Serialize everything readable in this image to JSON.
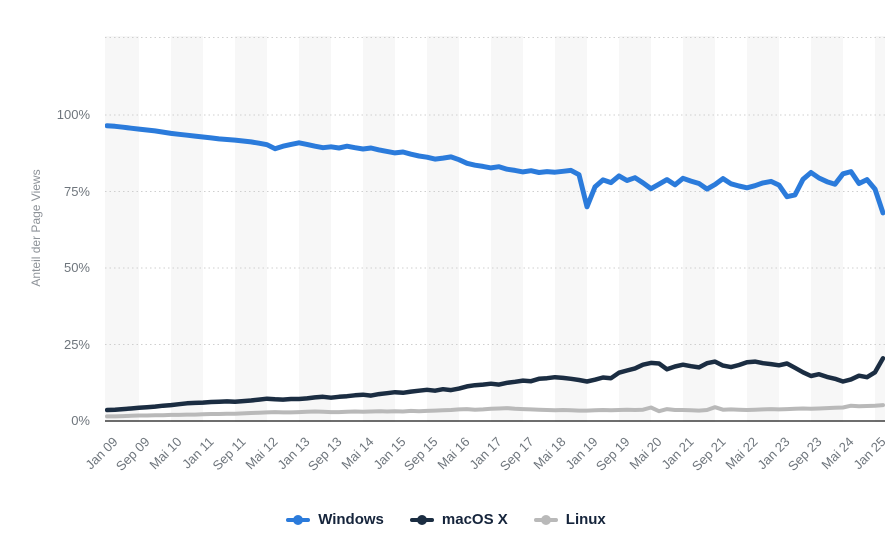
{
  "chart_data": {
    "type": "line",
    "title": "",
    "xlabel": "",
    "ylabel": "Anteil der Page Views",
    "ylim": [
      0,
      126
    ],
    "grid": "dotted horizontal lines at 0/25/50/75/100% plus top border",
    "background": "alternating vertical stripes, one stripe per 8-month tick interval",
    "legend_position": "bottom center",
    "x_unit": "monthly data, Jan 2009 - early 2025, tick every 8 months",
    "y_tick_labels": [
      "0%",
      "25%",
      "50%",
      "75%",
      "100%"
    ],
    "x_tick_labels": [
      "Jan 09",
      "Sep 09",
      "Mai 10",
      "Jan 11",
      "Sep 11",
      "Mai 12",
      "Jan 13",
      "Sep 13",
      "Mai 14",
      "Jan 15",
      "Sep 15",
      "Mai 16",
      "Jan 17",
      "Sep 17",
      "Mai 18",
      "Jan 19",
      "Sep 19",
      "Mai 20",
      "Jan 21",
      "Sep 21",
      "Mai 22",
      "Jan 23",
      "Sep 23",
      "Mai 24",
      "Jan 25"
    ],
    "series": [
      {
        "name": "Windows",
        "color": "#2b7bdb",
        "values": [
          96.5,
          96.3,
          96.0,
          95.7,
          95.4,
          95.1,
          94.8,
          94.4,
          94.0,
          93.7,
          93.4,
          93.1,
          92.8,
          92.5,
          92.2,
          92.0,
          91.8,
          91.5,
          91.2,
          90.8,
          90.3,
          89.0,
          89.8,
          90.4,
          90.9,
          90.4,
          89.8,
          89.3,
          89.6,
          89.2,
          89.8,
          89.3,
          88.9,
          89.2,
          88.6,
          88.1,
          87.6,
          87.9,
          87.2,
          86.6,
          86.2,
          85.6,
          85.9,
          86.3,
          85.4,
          84.2,
          83.6,
          83.2,
          82.7,
          83.1,
          82.3,
          81.9,
          81.4,
          81.8,
          81.2,
          81.5,
          81.3,
          81.6,
          81.9,
          80.5,
          70.0,
          76.5,
          78.8,
          77.9,
          80.1,
          78.6,
          79.5,
          77.8,
          75.9,
          77.4,
          78.9,
          77.2,
          79.3,
          78.4,
          77.6,
          75.8,
          77.3,
          79.2,
          77.5,
          76.8,
          76.2,
          76.9,
          77.8,
          78.3,
          77.1,
          73.3,
          73.9,
          79.0,
          81.2,
          79.4,
          78.2,
          77.4,
          80.8,
          81.5,
          77.6,
          78.9,
          75.8,
          68.0
        ]
      },
      {
        "name": "macOS X",
        "color": "#1b2d42",
        "values": [
          3.6,
          3.7,
          3.9,
          4.1,
          4.3,
          4.5,
          4.7,
          5.0,
          5.2,
          5.5,
          5.8,
          5.9,
          6.0,
          6.2,
          6.3,
          6.4,
          6.3,
          6.5,
          6.7,
          7.0,
          7.3,
          7.1,
          7.0,
          7.2,
          7.2,
          7.4,
          7.7,
          7.9,
          7.6,
          7.9,
          8.1,
          8.4,
          8.6,
          8.3,
          8.8,
          9.1,
          9.4,
          9.2,
          9.6,
          9.9,
          10.2,
          9.9,
          10.4,
          10.1,
          10.6,
          11.3,
          11.7,
          11.9,
          12.2,
          11.9,
          12.5,
          12.8,
          13.2,
          13.0,
          13.8,
          14.0,
          14.3,
          14.1,
          13.8,
          13.4,
          12.9,
          13.5,
          14.2,
          14.0,
          15.8,
          16.5,
          17.2,
          18.4,
          19.0,
          18.8,
          16.9,
          17.8,
          18.4,
          17.9,
          17.5,
          18.9,
          19.4,
          18.1,
          17.6,
          18.3,
          19.2,
          19.4,
          18.9,
          18.6,
          18.2,
          18.8,
          17.4,
          15.9,
          14.7,
          15.3,
          14.4,
          13.8,
          12.9,
          13.6,
          14.8,
          14.3,
          15.9,
          20.5
        ]
      },
      {
        "name": "Linux",
        "color": "#b9b9b9",
        "values": [
          1.5,
          1.5,
          1.6,
          1.7,
          1.8,
          1.8,
          1.9,
          1.9,
          2.0,
          2.0,
          2.1,
          2.1,
          2.2,
          2.3,
          2.3,
          2.4,
          2.4,
          2.5,
          2.6,
          2.7,
          2.8,
          2.9,
          2.8,
          2.8,
          2.9,
          3.0,
          3.1,
          3.0,
          2.9,
          2.9,
          3.0,
          3.1,
          3.0,
          3.1,
          3.2,
          3.1,
          3.2,
          3.1,
          3.3,
          3.2,
          3.3,
          3.4,
          3.5,
          3.6,
          3.8,
          3.9,
          3.7,
          3.8,
          4.0,
          4.1,
          4.2,
          4.0,
          3.9,
          3.8,
          3.7,
          3.6,
          3.5,
          3.6,
          3.5,
          3.4,
          3.4,
          3.5,
          3.6,
          3.5,
          3.6,
          3.7,
          3.6,
          3.7,
          4.4,
          3.2,
          3.9,
          3.6,
          3.6,
          3.5,
          3.4,
          3.6,
          4.5,
          3.7,
          3.8,
          3.7,
          3.6,
          3.7,
          3.8,
          3.9,
          3.8,
          3.9,
          4.0,
          4.1,
          4.0,
          4.1,
          4.2,
          4.3,
          4.4,
          5.0,
          4.8,
          4.9,
          5.0,
          5.2
        ]
      }
    ]
  },
  "colors": {
    "stripe": "#f7f7f7",
    "gridline": "#cfcfcf",
    "axis_line": "#3f3f3f",
    "tick_text": "#6e757c",
    "y_title_text": "#8d9298",
    "legend_text": "#15243b"
  }
}
